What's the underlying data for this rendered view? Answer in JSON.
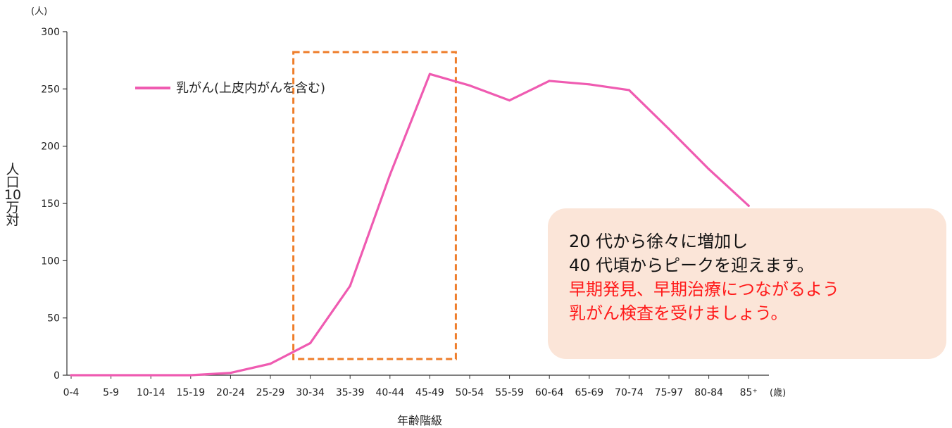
{
  "chart_data": {
    "type": "line",
    "categories": [
      "0-4",
      "5-9",
      "10-14",
      "15-19",
      "20-24",
      "25-29",
      "30-34",
      "35-39",
      "40-44",
      "45-49",
      "50-54",
      "55-59",
      "60-64",
      "65-69",
      "70-74",
      "75-97",
      "80-84",
      "85⁺"
    ],
    "series": [
      {
        "name": "乳がん(上皮内がんを含む)",
        "values": [
          0,
          0,
          0,
          0,
          2,
          10,
          28,
          78,
          175,
          263,
          253,
          240,
          257,
          254,
          249,
          215,
          180,
          148
        ]
      }
    ],
    "yticks": [
      "0",
      "50",
      "100",
      "150",
      "200",
      "250",
      "300"
    ],
    "ylim": [
      0,
      300
    ],
    "ylabel": "人口10万対",
    "yunit": "(人)",
    "xlabel": "年齢階級",
    "xunit": "(歳)",
    "legend_position": "top-left",
    "line_color": "#ef5bb1",
    "highlight": {
      "from": "30-34",
      "to": "45-49",
      "color": "#ee7d2a",
      "style": "dashed"
    }
  },
  "callout": {
    "line1": "20 代から徐々に増加し",
    "line2": "40 代頃からピークを迎えます。",
    "line3": "早期発見、早期治療につながるよう",
    "line4": "乳がん検査を受けましょう。",
    "bg_color": "#fbe5d8",
    "emphasis_color": "#ff1a1a"
  }
}
